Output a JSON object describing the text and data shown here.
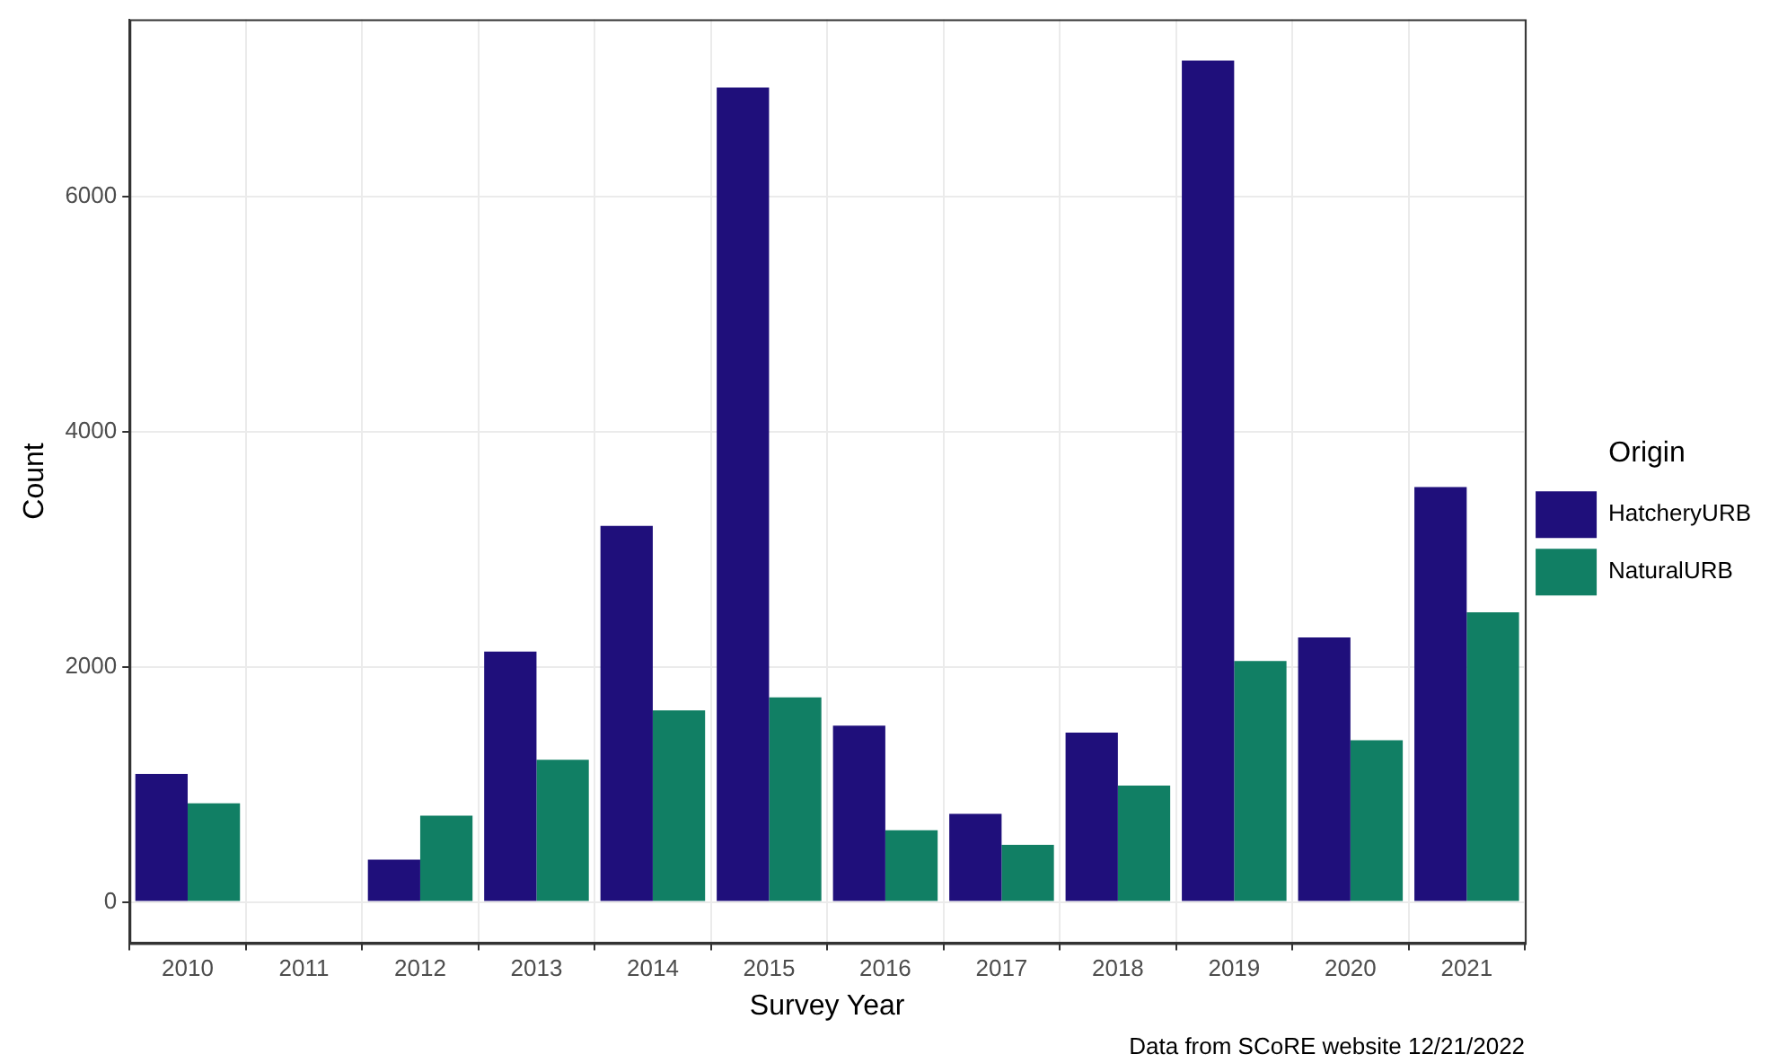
{
  "chart_data": {
    "type": "bar",
    "xlabel": "Survey Year",
    "ylabel": "Count",
    "legend_title": "Origin",
    "categories": [
      "2010",
      "2011",
      "2012",
      "2013",
      "2014",
      "2015",
      "2016",
      "2017",
      "2018",
      "2019",
      "2020",
      "2021"
    ],
    "series": [
      {
        "name": "HatcheryURB",
        "color": "#1f0f7b",
        "values": [
          1090,
          null,
          360,
          2130,
          3200,
          6930,
          1500,
          750,
          1440,
          7160,
          2250,
          3530
        ]
      },
      {
        "name": "NaturalURB",
        "color": "#117f64",
        "values": [
          840,
          null,
          735,
          1210,
          1630,
          1740,
          610,
          485,
          990,
          2050,
          1375,
          2465
        ]
      }
    ],
    "ylim": [
      -350,
      7510
    ],
    "yticks": [
      0,
      2000,
      4000,
      6000
    ],
    "grid": true,
    "legend": "right",
    "annotations": [
      "Data from SCoRE website 12/21/2022"
    ]
  }
}
